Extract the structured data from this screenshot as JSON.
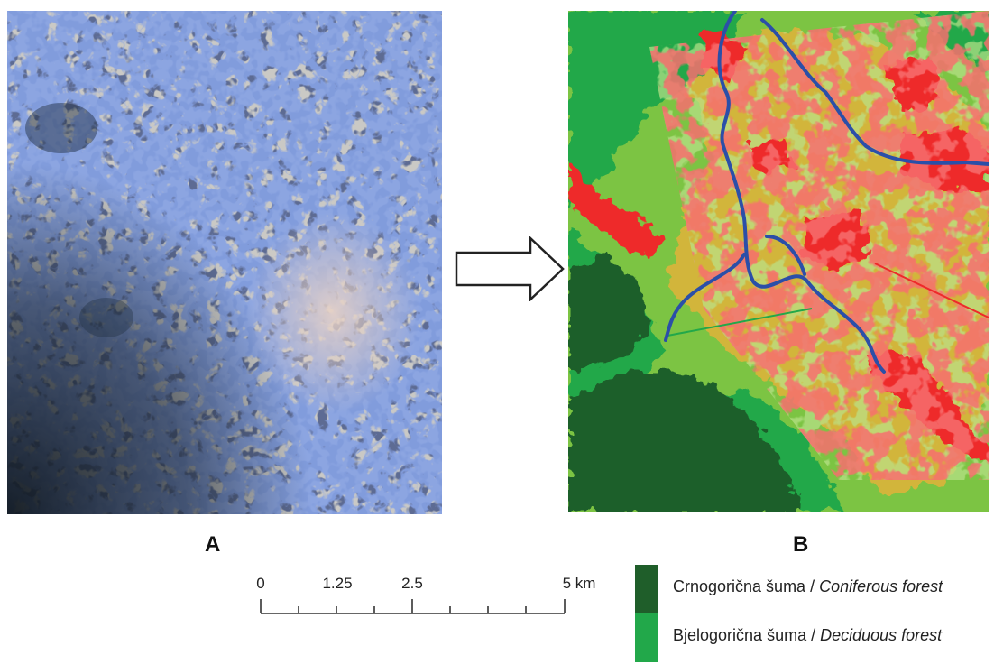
{
  "panels": {
    "a_label": "A",
    "b_label": "B"
  },
  "scale_bar": {
    "ticks": [
      "0",
      "1.25",
      "2.5",
      "5 km"
    ]
  },
  "legend": {
    "items": [
      {
        "label_local": "Crnogorična šuma",
        "separator": " / ",
        "label_en": "Coniferous forest",
        "color": "#1f5e2a"
      },
      {
        "label_local": "Bjelogorična šuma",
        "separator": " / ",
        "label_en": "Deciduous forest",
        "color": "#22a84a"
      }
    ]
  },
  "colors": {
    "segment_outline": "#3f5bc4",
    "coniferous": "#1f5e2a",
    "deciduous": "#22a84a",
    "mixed_light_green": "#7cc443",
    "agriculture_yellow": "#d2b53b",
    "urban_red": "#ee2a2a",
    "water_blue": "#2b4fa8"
  },
  "icons": {
    "arrow": "right-arrow-icon"
  }
}
